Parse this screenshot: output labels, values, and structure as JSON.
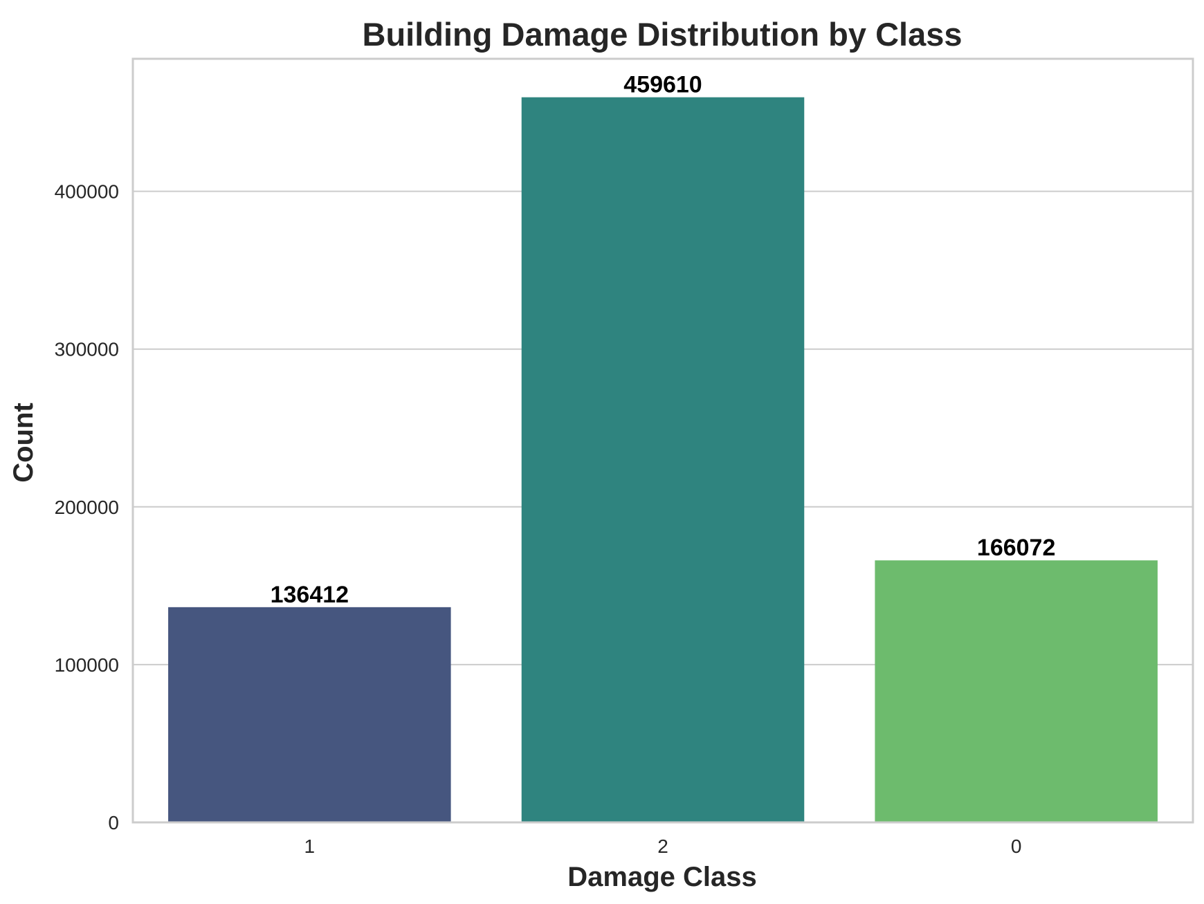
{
  "chart_data": {
    "type": "bar",
    "title": "Building Damage Distribution by Class",
    "xlabel": "Damage Class",
    "ylabel": "Count",
    "categories": [
      "1",
      "2",
      "0"
    ],
    "values": [
      136412,
      459610,
      166072
    ],
    "data_labels": [
      "136412",
      "459610",
      "166072"
    ],
    "colors": [
      "#46567f",
      "#2f847f",
      "#6dbb6d"
    ],
    "ylim": [
      0,
      484000
    ],
    "yticks": [
      0,
      100000,
      200000,
      300000,
      400000
    ],
    "ytick_labels": [
      "0",
      "100000",
      "200000",
      "300000",
      "400000"
    ],
    "grid": true,
    "grid_axis": "y",
    "legend": "none"
  }
}
